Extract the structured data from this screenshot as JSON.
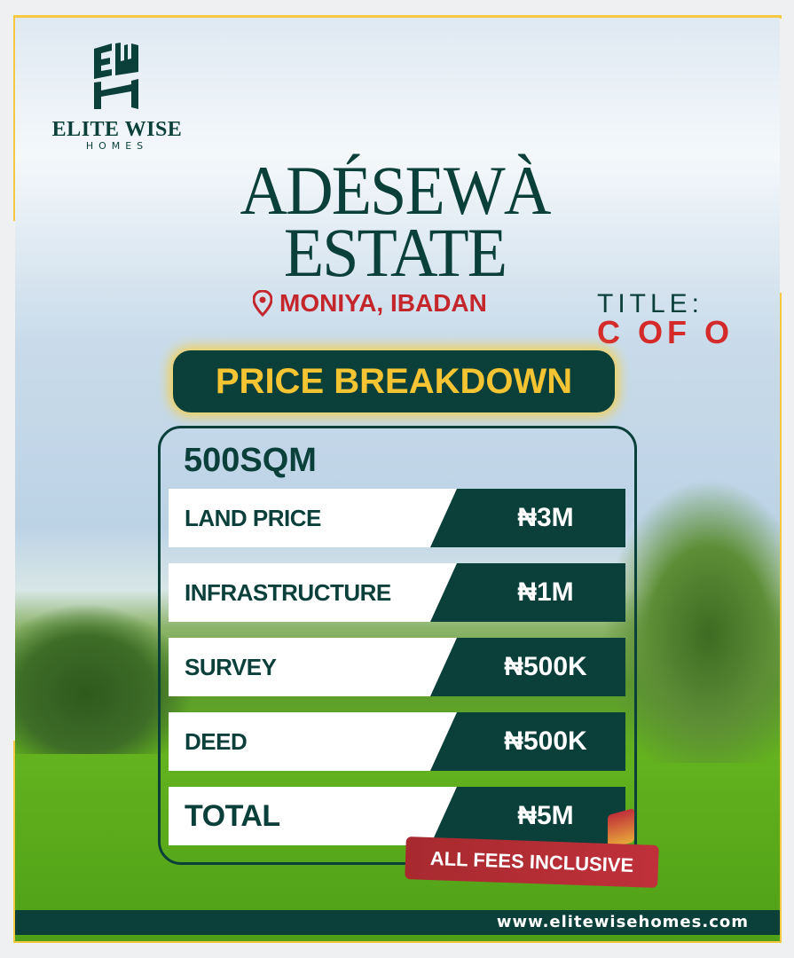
{
  "brand": {
    "name": "ELITE WISE",
    "sub": "HOMES",
    "logo_letters": "EWH"
  },
  "estate": {
    "line1": "ADÉSEWÀ",
    "line2": "ESTATE",
    "location": "MONIYA, IBADAN"
  },
  "title_doc": {
    "label": "TITLE:",
    "value": "C OF O"
  },
  "price_heading": "PRICE BREAKDOWN",
  "plot_size": "500SQM",
  "rows": [
    {
      "label": "LAND PRICE",
      "value": "₦3M"
    },
    {
      "label": "INFRASTRUCTURE",
      "value": "₦1M"
    },
    {
      "label": "SURVEY",
      "value": "₦500K"
    },
    {
      "label": "DEED",
      "value": "₦500K"
    },
    {
      "label": "TOTAL",
      "value": "₦5M"
    }
  ],
  "badge": "ALL FEES INCLUSIVE",
  "website": "www.elitewisehomes.com",
  "colors": {
    "primary": "#0b3f3a",
    "accent": "#f5c842",
    "red": "#c4262b"
  }
}
